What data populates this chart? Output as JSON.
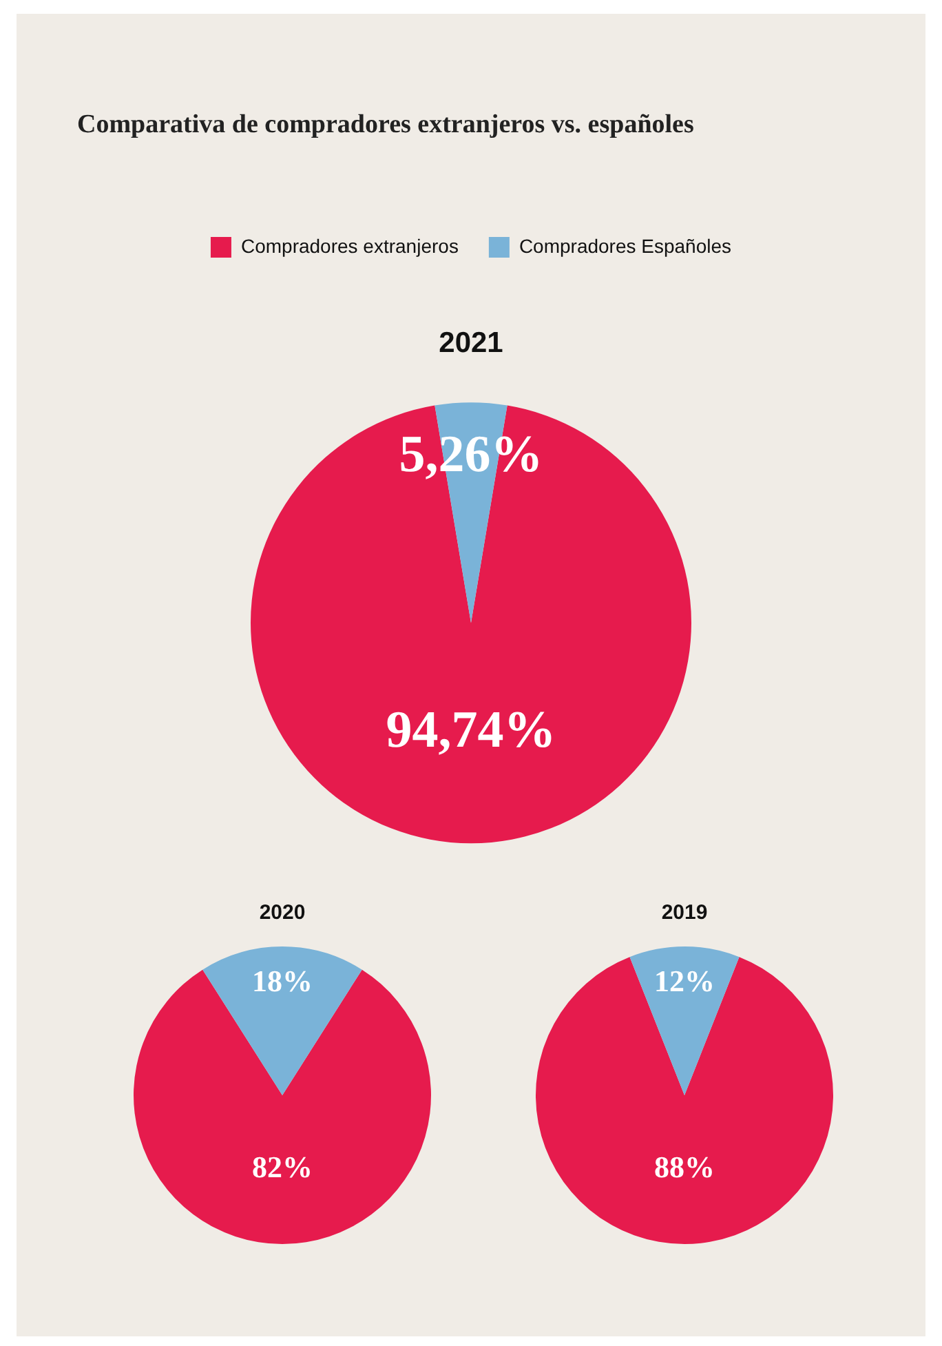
{
  "chart_data": [
    {
      "type": "pie",
      "title": "Comparativa de compradores extranjeros vs. españoles",
      "subtitle": "2021",
      "categories": [
        "Compradores extranjeros",
        "Compradores Españoles"
      ],
      "values": [
        94.74,
        5.26
      ],
      "colors": [
        "#e61b4d",
        "#7ab3d8"
      ],
      "value_labels": [
        "94,74%",
        "5,26%"
      ],
      "legend": "top"
    },
    {
      "type": "pie",
      "title": "2020",
      "categories": [
        null,
        null
      ],
      "values": [
        82,
        18
      ],
      "colors": [
        "#e61b4d",
        "#7ab3d8"
      ],
      "value_labels": [
        "82%",
        "18%"
      ]
    },
    {
      "type": "pie",
      "title": "2019",
      "categories": [
        null,
        null
      ],
      "values": [
        88,
        12
      ],
      "colors": [
        "#e61b4d",
        "#7ab3d8"
      ],
      "value_labels": [
        "88%",
        "12%"
      ]
    }
  ]
}
